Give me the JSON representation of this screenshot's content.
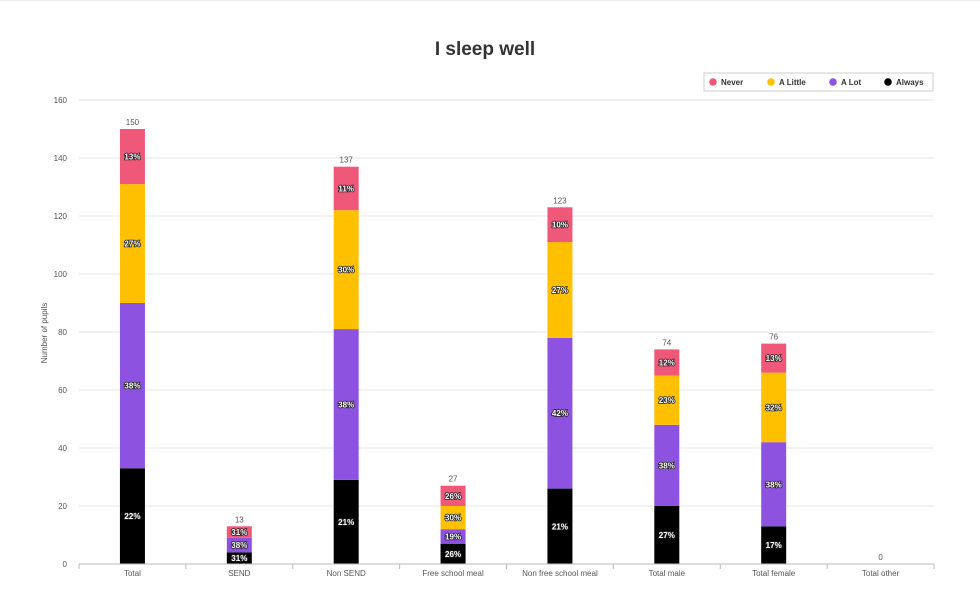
{
  "chart_data": {
    "type": "bar",
    "stacked": true,
    "title": "I sleep well",
    "ylabel": "Number of pupils",
    "xlabel": "",
    "ylim": [
      0,
      160
    ],
    "yticks": [
      0,
      20,
      40,
      60,
      80,
      100,
      120,
      140,
      160
    ],
    "grid": true,
    "legend_position": "top-right",
    "categories": [
      "Total",
      "SEND",
      "Non SEND",
      "Free school meal",
      "Non free school meal",
      "Total male",
      "Total female",
      "Total other"
    ],
    "totals": [
      150,
      13,
      137,
      27,
      123,
      74,
      76,
      0
    ],
    "series": [
      {
        "name": "Always",
        "color": "#000000",
        "values": [
          33,
          4,
          29,
          7,
          26,
          20,
          13,
          0
        ],
        "labels": [
          "22%",
          "31%",
          "21%",
          "26%",
          "21%",
          "27%",
          "17%",
          ""
        ]
      },
      {
        "name": "A Lot",
        "color": "#8e52e0",
        "values": [
          57,
          5,
          52,
          5,
          52,
          28,
          29,
          0
        ],
        "labels": [
          "38%",
          "38%",
          "38%",
          "19%",
          "42%",
          "38%",
          "38%",
          ""
        ]
      },
      {
        "name": "A Little",
        "color": "#ffc000",
        "values": [
          41,
          0,
          41,
          8,
          33,
          17,
          24,
          0
        ],
        "labels": [
          "27%",
          "",
          "30%",
          "30%",
          "27%",
          "23%",
          "32%",
          ""
        ]
      },
      {
        "name": "Never",
        "color": "#f0587a",
        "values": [
          19,
          4,
          15,
          7,
          12,
          9,
          10,
          0
        ],
        "labels": [
          "13%",
          "31%",
          "11%",
          "26%",
          "10%",
          "12%",
          "13%",
          ""
        ]
      }
    ],
    "legend_order": [
      "Never",
      "A Little",
      "A Lot",
      "Always"
    ]
  }
}
